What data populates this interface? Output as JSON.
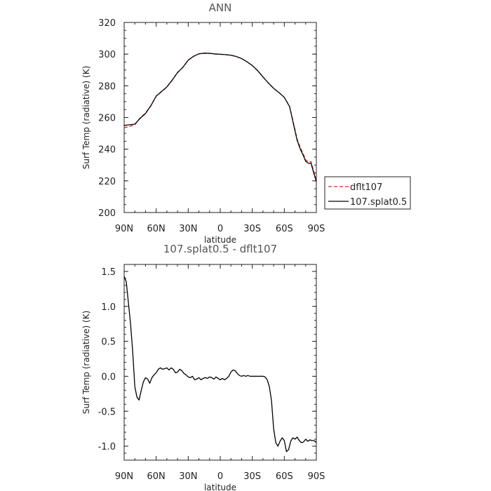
{
  "chart_data": [
    {
      "type": "line",
      "title": "ANN",
      "xlabel": "latitude",
      "ylabel": "Surf Temp (radiative) (K)",
      "xlim": [
        90,
        -90
      ],
      "ylim": [
        200,
        320
      ],
      "x_ticks": [
        {
          "value": 90,
          "label": "90N"
        },
        {
          "value": 60,
          "label": "60N"
        },
        {
          "value": 30,
          "label": "30N"
        },
        {
          "value": 0,
          "label": "0"
        },
        {
          "value": -30,
          "label": "30S"
        },
        {
          "value": -60,
          "label": "60S"
        },
        {
          "value": -90,
          "label": "90S"
        }
      ],
      "y_ticks": [
        200,
        220,
        240,
        260,
        280,
        300,
        320
      ],
      "legend": "right",
      "series": [
        {
          "name": "dflt107",
          "color": "#e02020",
          "dash": "dashed",
          "x": [
            90,
            85,
            80,
            75,
            70,
            65,
            60,
            55,
            50,
            45,
            40,
            35,
            30,
            25,
            20,
            15,
            10,
            5,
            0,
            -5,
            -10,
            -15,
            -20,
            -25,
            -30,
            -35,
            -40,
            -45,
            -50,
            -55,
            -60,
            -65,
            -70,
            -72,
            -75,
            -78,
            -80,
            -83,
            -85,
            -87,
            -90
          ],
          "values": [
            253.6,
            254.3,
            255.4,
            259.8,
            262.8,
            267.5,
            273.5,
            276.3,
            279.2,
            283.5,
            288.3,
            291.6,
            296.2,
            298.6,
            300.2,
            300.6,
            300.5,
            300.1,
            299.9,
            299.7,
            299.3,
            298.5,
            297.2,
            295.2,
            292.8,
            289.6,
            285.6,
            281.8,
            278.4,
            275.7,
            272.7,
            266.8,
            252.4,
            246.4,
            240.9,
            236.6,
            233.2,
            231.8,
            232.2,
            227.3,
            220.5
          ]
        },
        {
          "name": "107.splat0.5",
          "color": "#000000",
          "dash": "solid",
          "x": [
            90,
            85,
            80,
            75,
            70,
            65,
            60,
            55,
            50,
            45,
            40,
            35,
            30,
            25,
            20,
            15,
            10,
            5,
            0,
            -5,
            -10,
            -15,
            -20,
            -25,
            -30,
            -35,
            -40,
            -45,
            -50,
            -55,
            -60,
            -65,
            -70,
            -72,
            -75,
            -78,
            -80,
            -83,
            -85,
            -87,
            -90
          ],
          "values": [
            255.0,
            255.4,
            255.8,
            259.5,
            262.5,
            267.4,
            273.5,
            276.4,
            279.3,
            283.6,
            288.4,
            291.7,
            296.2,
            298.6,
            300.2,
            300.6,
            300.5,
            300.1,
            299.9,
            299.7,
            299.3,
            298.5,
            297.2,
            295.2,
            292.8,
            289.6,
            285.6,
            281.8,
            278.4,
            275.7,
            272.7,
            266.8,
            251.5,
            245.6,
            240.0,
            235.7,
            232.3,
            231.0,
            231.1,
            226.3,
            219.5
          ]
        }
      ]
    },
    {
      "type": "line",
      "title": "107.splat0.5 - dflt107",
      "xlabel": "latitude",
      "ylabel": "Surf Temp (radiative) (K)",
      "xlim": [
        90,
        -90
      ],
      "ylim": [
        -1.2,
        1.6
      ],
      "x_ticks": [
        {
          "value": 90,
          "label": "90N"
        },
        {
          "value": 60,
          "label": "60N"
        },
        {
          "value": 30,
          "label": "30N"
        },
        {
          "value": 0,
          "label": "0"
        },
        {
          "value": -30,
          "label": "30S"
        },
        {
          "value": -60,
          "label": "60S"
        },
        {
          "value": -90,
          "label": "90S"
        }
      ],
      "y_ticks": [
        {
          "value": -1.0,
          "label": "-1.0"
        },
        {
          "value": -0.5,
          "label": "-0.5"
        },
        {
          "value": 0.0,
          "label": "0.0"
        },
        {
          "value": 0.5,
          "label": "0.5"
        },
        {
          "value": 1.0,
          "label": "1.0"
        },
        {
          "value": 1.5,
          "label": "1.5"
        }
      ],
      "series": [
        {
          "name": "",
          "color": "#000000",
          "dash": "solid",
          "x": [
            90,
            88,
            86,
            84,
            82,
            80,
            78,
            76,
            74,
            72,
            70,
            68,
            66,
            64,
            62,
            60,
            58,
            56,
            54,
            52,
            50,
            48,
            46,
            44,
            42,
            40,
            38,
            36,
            34,
            32,
            30,
            28,
            26,
            24,
            22,
            20,
            18,
            16,
            14,
            12,
            10,
            8,
            6,
            4,
            2,
            0,
            -2,
            -4,
            -6,
            -8,
            -10,
            -12,
            -14,
            -16,
            -18,
            -20,
            -22,
            -24,
            -26,
            -28,
            -30,
            -32,
            -34,
            -36,
            -38,
            -40,
            -42,
            -44,
            -46,
            -48,
            -50,
            -52,
            -54,
            -56,
            -58,
            -60,
            -62,
            -64,
            -66,
            -68,
            -70,
            -72,
            -74,
            -76,
            -78,
            -80,
            -82,
            -84,
            -86,
            -88,
            -90
          ],
          "values": [
            1.43,
            1.35,
            1.05,
            0.75,
            0.35,
            -0.15,
            -0.3,
            -0.34,
            -0.2,
            -0.08,
            -0.02,
            -0.04,
            -0.1,
            -0.02,
            0.02,
            0.05,
            0.1,
            0.12,
            0.1,
            0.11,
            0.12,
            0.09,
            0.12,
            0.1,
            0.05,
            0.06,
            0.1,
            0.08,
            0.04,
            0.02,
            -0.01,
            -0.02,
            0.0,
            -0.05,
            -0.04,
            -0.02,
            -0.05,
            -0.03,
            -0.02,
            -0.03,
            -0.01,
            -0.02,
            -0.04,
            -0.01,
            -0.03,
            -0.05,
            -0.03,
            -0.05,
            -0.03,
            0.0,
            0.06,
            0.09,
            0.08,
            0.04,
            0.01,
            0.0,
            0.01,
            0.0,
            0.01,
            0.0,
            0.0,
            0.0,
            0.0,
            0.0,
            0.0,
            0.0,
            -0.01,
            -0.05,
            -0.15,
            -0.35,
            -0.75,
            -0.95,
            -1.0,
            -0.93,
            -0.88,
            -0.92,
            -1.08,
            -1.05,
            -0.93,
            -0.88,
            -0.9,
            -0.87,
            -0.92,
            -0.95,
            -0.94,
            -0.9,
            -0.93,
            -0.91,
            -0.92,
            -0.92,
            -0.95
          ]
        }
      ]
    }
  ]
}
